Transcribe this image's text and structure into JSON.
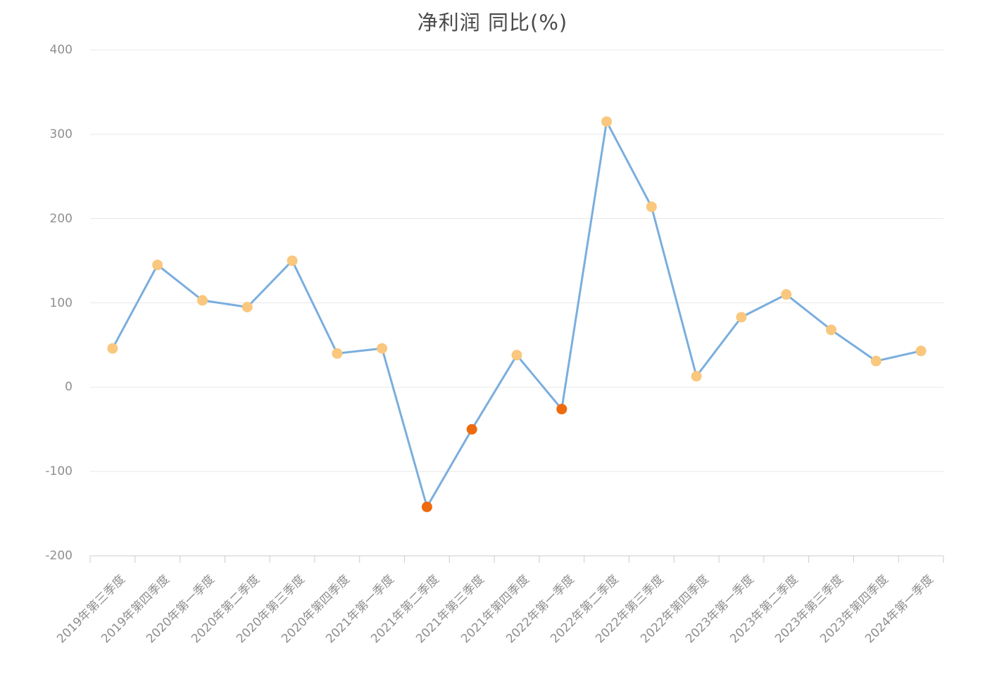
{
  "chart_data": {
    "type": "line",
    "title": "净利润 同比(%)",
    "categories": [
      "2019年第三季度",
      "2019年第四季度",
      "2020年第一季度",
      "2020年第二季度",
      "2020年第三季度",
      "2020年第四季度",
      "2021年第一季度",
      "2021年第二季度",
      "2021年第三季度",
      "2021年第四季度",
      "2022年第一季度",
      "2022年第二季度",
      "2022年第三季度",
      "2022年第四季度",
      "2023年第一季度",
      "2023年第二季度",
      "2023年第三季度",
      "2023年第四季度",
      "2024年第一季度"
    ],
    "values": [
      46,
      145,
      103,
      95,
      150,
      40,
      46,
      -142,
      -50,
      38,
      -26,
      315,
      214,
      13,
      83,
      110,
      68,
      31,
      43
    ],
    "ylim": [
      -200,
      400
    ],
    "yticks": [
      400,
      300,
      200,
      100,
      0,
      -100,
      -200
    ],
    "xlabel": "",
    "ylabel": "",
    "grid": true,
    "legend": "none",
    "x_label_rotation": 45,
    "colors": {
      "line": "#7aaede",
      "point_positive": "#f9c77d",
      "point_negative": "#ee6a0f",
      "grid_line": "#e8e8e8",
      "axis_line": "#cccccc",
      "axis_label": "#8f8f8f",
      "title": "#4a4a4a",
      "background": "#ffffff"
    }
  }
}
